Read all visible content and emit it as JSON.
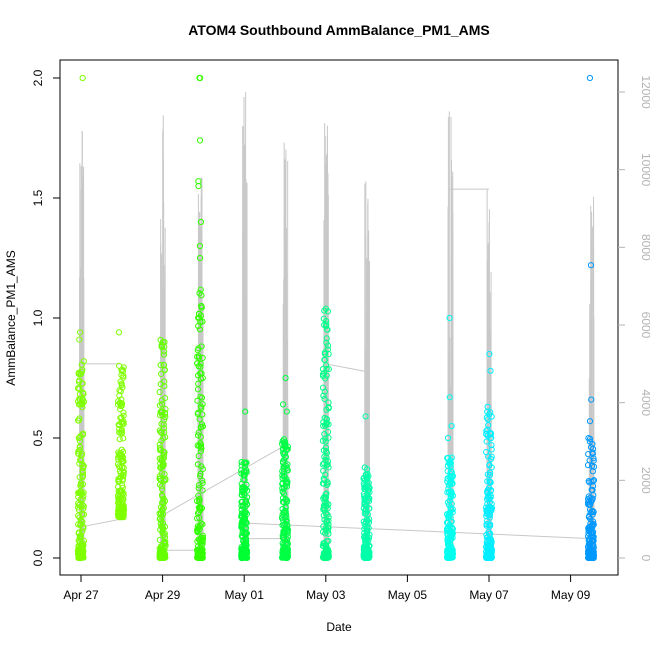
{
  "chart_data": {
    "type": "scatter",
    "title": "ATOM4 Southbound AmmBalance_PM1_AMS",
    "xlabel": "Date",
    "ylabel": "AmmBalance_PM1_AMS",
    "x_range_days": [
      "2016-04-26",
      "2016-05-10"
    ],
    "x_ticks": [
      {
        "date": "2016-04-27",
        "label": "Apr 27"
      },
      {
        "date": "2016-04-29",
        "label": "Apr 29"
      },
      {
        "date": "2016-05-01",
        "label": "May 01"
      },
      {
        "date": "2016-05-03",
        "label": "May 03"
      },
      {
        "date": "2016-05-05",
        "label": "May 05"
      },
      {
        "date": "2016-05-07",
        "label": "May 07"
      },
      {
        "date": "2016-05-09",
        "label": "May 09"
      }
    ],
    "ylim": [
      -0.06,
      2.1
    ],
    "y_ticks": [
      0.0,
      0.5,
      1.0,
      1.5,
      2.0
    ],
    "y_tick_labels": [
      "0.0",
      "0.5",
      "1.0",
      "1.5",
      "2.0"
    ],
    "secondary_axis": {
      "ylim": [
        -300,
        12600
      ],
      "ticks": [
        0,
        2000,
        4000,
        6000,
        8000,
        10000,
        12000
      ],
      "tick_labels": [
        "0",
        "2000",
        "4000",
        "6000",
        "8000",
        "10000",
        "12000"
      ],
      "color": "#b3b3b3"
    },
    "grid": false,
    "legend": "none",
    "point_style": "open-circle",
    "color_by_time": true,
    "clusters": [
      {
        "center": "2016-04-27 00:00",
        "color": "#7fff00",
        "ymin": 0.0,
        "ymax": 0.84,
        "outliers": [
          2.0,
          0.94,
          0.91
        ]
      },
      {
        "center": "2016-04-27 23:30",
        "color": "#7fff00",
        "ymin": 0.17,
        "ymax": 0.84,
        "outliers": [
          0.94
        ]
      },
      {
        "center": "2016-04-29 00:00",
        "color": "#66ff00",
        "ymin": 0.0,
        "ymax": 0.91,
        "outliers": [
          0.88
        ]
      },
      {
        "center": "2016-04-29 22:00",
        "color": "#33ff00",
        "ymin": 0.0,
        "ymax": 1.13,
        "outliers": [
          2.0,
          2.0,
          1.74,
          1.57,
          1.55,
          1.4,
          1.3,
          1.25
        ]
      },
      {
        "center": "2016-05-01 00:00",
        "color": "#00ff33",
        "ymin": 0.0,
        "ymax": 0.4,
        "outliers": [
          0.61
        ]
      },
      {
        "center": "2016-05-02 00:00",
        "color": "#00ff44",
        "ymin": 0.0,
        "ymax": 0.5,
        "outliers": [
          0.75,
          0.64,
          0.61
        ]
      },
      {
        "center": "2016-05-03 00:00",
        "color": "#00ff88",
        "ymin": 0.0,
        "ymax": 1.05,
        "outliers": []
      },
      {
        "center": "2016-05-04 00:00",
        "color": "#00ffaa",
        "ymin": 0.0,
        "ymax": 0.38,
        "outliers": [
          0.59
        ]
      },
      {
        "center": "2016-05-06 01:00",
        "color": "#00ffee",
        "ymin": 0.0,
        "ymax": 0.42,
        "outliers": [
          1.0,
          0.67,
          0.55,
          0.5
        ]
      },
      {
        "center": "2016-05-07 00:00",
        "color": "#00eeff",
        "ymin": 0.0,
        "ymax": 0.62,
        "outliers": [
          0.85,
          0.78,
          0.63
        ]
      },
      {
        "center": "2016-05-09 12:00",
        "color": "#0099ff",
        "ymin": 0.0,
        "ymax": 0.5,
        "outliers": [
          2.0,
          1.22,
          0.66,
          0.57
        ]
      }
    ],
    "secondary_series": {
      "name": "",
      "color": "#c8c8c8",
      "spikes": [
        {
          "center": "2016-04-27 00:00",
          "max": 11000
        },
        {
          "center": "2016-04-29 00:00",
          "max": 11400
        },
        {
          "center": "2016-04-29 22:00",
          "max": 9800
        },
        {
          "center": "2016-05-01 00:00",
          "max": 12000
        },
        {
          "center": "2016-05-02 00:00",
          "max": 10700
        },
        {
          "center": "2016-05-03 00:00",
          "max": 11200
        },
        {
          "center": "2016-05-04 00:00",
          "max": 9700
        },
        {
          "center": "2016-05-06 01:00",
          "max": 11500
        },
        {
          "center": "2016-05-07 00:00",
          "max": 9500
        },
        {
          "center": "2016-05-09 12:00",
          "max": 9300
        }
      ],
      "connectors": [
        {
          "from": "2016-04-27 00:00",
          "to": "2016-04-27 23:30",
          "v0": 5000,
          "v1": 5000
        },
        {
          "from": "2016-04-27 00:00",
          "to": "2016-04-27 23:30",
          "v0": 800,
          "v1": 1000
        },
        {
          "from": "2016-04-29 00:00",
          "to": "2016-05-02 00:00",
          "v0": 1100,
          "v1": 2900
        },
        {
          "from": "2016-04-29 00:00",
          "to": "2016-04-29 22:00",
          "v0": 200,
          "v1": 200
        },
        {
          "from": "2016-05-01 00:00",
          "to": "2016-05-02 00:00",
          "v0": 500,
          "v1": 500
        },
        {
          "from": "2016-05-01 00:00",
          "to": "2016-05-09 12:00",
          "v0": 900,
          "v1": 500
        },
        {
          "from": "2016-05-03 00:00",
          "to": "2016-05-04 00:00",
          "v0": 5000,
          "v1": 4800
        },
        {
          "from": "2016-05-06 01:00",
          "to": "2016-05-07 00:00",
          "v0": 9500,
          "v1": 9500
        }
      ]
    }
  }
}
